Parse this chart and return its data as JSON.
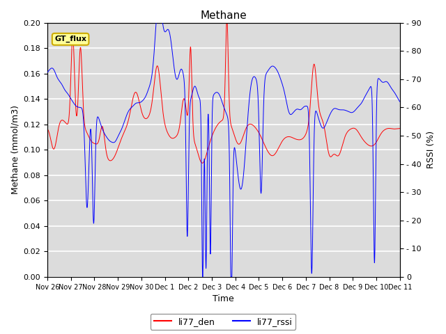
{
  "title": "Methane",
  "xlabel": "Time",
  "ylabel_left": "Methane (mmol/m3)",
  "ylabel_right": "RSSI (%)",
  "ylim_left": [
    0.0,
    0.2
  ],
  "ylim_right": [
    0,
    90
  ],
  "yticks_left": [
    0.0,
    0.02,
    0.04,
    0.06,
    0.08,
    0.1,
    0.12,
    0.14,
    0.16,
    0.18,
    0.2
  ],
  "yticks_right": [
    0,
    10,
    20,
    30,
    40,
    50,
    60,
    70,
    80,
    90
  ],
  "xtick_labels": [
    "Nov 26",
    "Nov 27",
    "Nov 28",
    "Nov 29",
    "Nov 30",
    "Dec 1",
    "Dec 2",
    "Dec 3",
    "Dec 4",
    "Dec 5",
    "Dec 6",
    "Dec 7",
    "Dec 8",
    "Dec 9",
    "Dec 10",
    "Dec 11"
  ],
  "background_color": "#dcdcdc",
  "grid_color": "#ffffff",
  "legend_label1": "li77_den",
  "legend_label2": "li77_rssi",
  "line_color1": "red",
  "line_color2": "blue",
  "box_label": "GT_flux",
  "box_facecolor": "#ffff99",
  "box_edgecolor": "#ccaa00",
  "figsize": [
    6.4,
    4.8
  ],
  "dpi": 100
}
